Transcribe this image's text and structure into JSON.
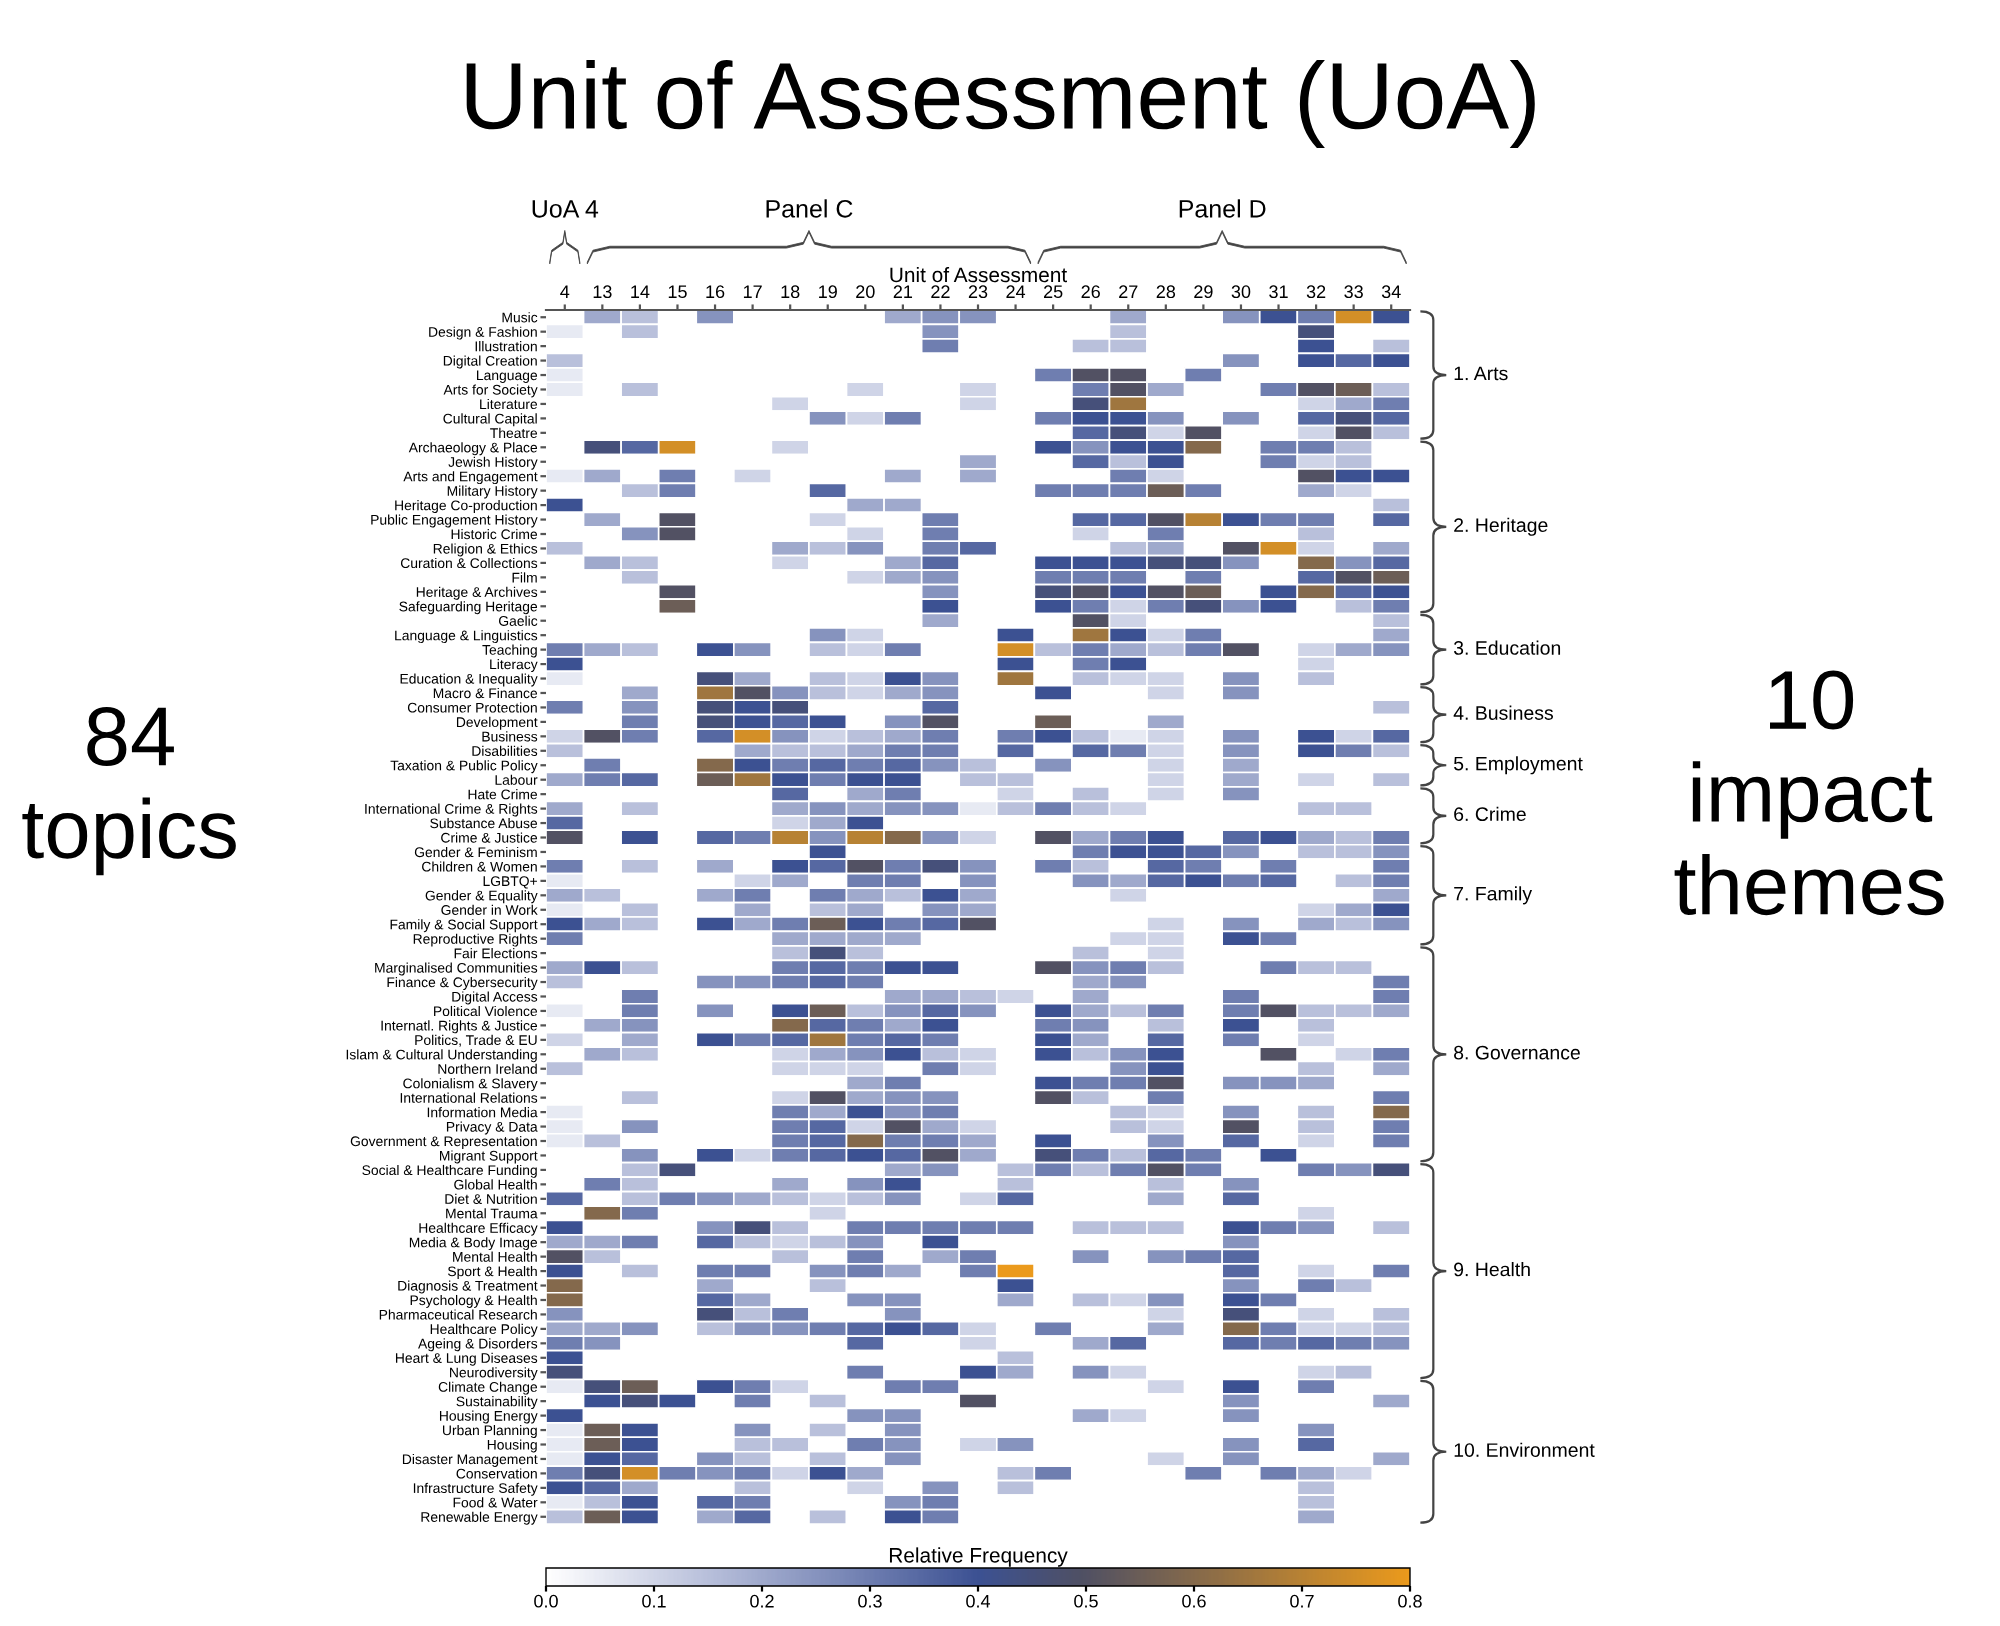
{
  "chart_data": {
    "type": "heatmap",
    "title": "Unit of Assessment (UoA)",
    "xlabel": "Unit of Assessment",
    "clabel": "Relative Frequency",
    "categories": [
      "4",
      "13",
      "14",
      "15",
      "16",
      "17",
      "18",
      "19",
      "20",
      "21",
      "22",
      "23",
      "24",
      "25",
      "26",
      "27",
      "28",
      "29",
      "30",
      "31",
      "32",
      "33",
      "34"
    ],
    "y_categories": [
      "Music",
      "Design & Fashion",
      "Illustration",
      "Digital Creation",
      "Language",
      "Arts for Society",
      "Literature",
      "Cultural Capital",
      "Theatre",
      "Archaeology & Place",
      "Jewish History",
      "Arts and Engagement",
      "Military History",
      "Heritage Co-production",
      "Public Engagement History",
      "Historic Crime",
      "Religion & Ethics",
      "Curation & Collections",
      "Film",
      "Heritage & Archives",
      "Safeguarding Heritage",
      "Gaelic",
      "Language & Linguistics",
      "Teaching",
      "Literacy",
      "Education & Inequality",
      "Macro & Finance",
      "Consumer Protection",
      "Development",
      "Business",
      "Disabilities",
      "Taxation & Public Policy",
      "Labour",
      "Hate Crime",
      "International Crime & Rights",
      "Substance Abuse",
      "Crime & Justice",
      "Gender & Feminism",
      "Children & Women",
      "LGBTQ+",
      "Gender & Equality",
      "Gender in Work",
      "Family & Social Support",
      "Reproductive Rights",
      "Fair Elections",
      "Marginalised Communities",
      "Finance & Cybersecurity",
      "Digital Access",
      "Political Violence",
      "Internatl. Rights & Justice",
      "Politics, Trade & EU",
      "Islam & Cultural Understanding",
      "Northern Ireland",
      "Colonialism & Slavery",
      "International Relations",
      "Information Media",
      "Privacy & Data",
      "Government & Representation",
      "Migrant Support",
      "Social & Healthcare Funding",
      "Global Health",
      "Diet & Nutrition",
      "Mental Trauma",
      "Healthcare Efficacy",
      "Media & Body Image",
      "Mental Health",
      "Sport & Health",
      "Diagnosis & Treatment",
      "Psychology & Health",
      "Pharmaceutical Research",
      "Healthcare Policy",
      "Ageing & Disorders",
      "Heart & Lung Diseases",
      "Neurodiversity",
      "Climate Change",
      "Sustainability",
      "Housing Energy",
      "Urban Planning",
      "Housing",
      "Disaster Management",
      "Conservation",
      "Infrastructure Safety",
      "Food & Water",
      "Renewable Energy"
    ],
    "cells": [
      [
        0,
        0.2,
        0.15,
        0,
        0.25,
        0,
        0,
        0,
        0,
        0.2,
        0.25,
        0.25,
        0,
        0,
        0,
        0.2,
        0,
        0,
        0.25,
        0.4,
        0.3,
        0.75,
        0.4
      ],
      [
        0.05,
        0,
        0.15,
        0,
        0,
        0,
        0,
        0,
        0,
        0,
        0.25,
        0,
        0,
        0,
        0,
        0.15,
        0,
        0,
        0,
        0,
        0.45,
        0,
        0
      ],
      [
        0,
        0,
        0,
        0,
        0,
        0,
        0,
        0,
        0,
        0,
        0.3,
        0,
        0,
        0,
        0.15,
        0.15,
        0,
        0,
        0,
        0,
        0.4,
        0,
        0.15
      ],
      [
        0.15,
        0,
        0,
        0,
        0,
        0,
        0,
        0,
        0,
        0,
        0,
        0,
        0,
        0,
        0,
        0,
        0,
        0,
        0.25,
        0,
        0.4,
        0.35,
        0.4
      ],
      [
        0.05,
        0,
        0,
        0,
        0,
        0,
        0,
        0,
        0,
        0,
        0,
        0,
        0,
        0.3,
        0.5,
        0.5,
        0,
        0.3,
        0,
        0,
        0,
        0,
        0
      ],
      [
        0.05,
        0,
        0.15,
        0,
        0,
        0,
        0,
        0,
        0.1,
        0,
        0,
        0.1,
        0,
        0,
        0.3,
        0.5,
        0.2,
        0,
        0,
        0.3,
        0.5,
        0.55,
        0.15
      ],
      [
        0,
        0,
        0,
        0,
        0,
        0,
        0.1,
        0,
        0,
        0,
        0,
        0.1,
        0,
        0,
        0.45,
        0.65,
        0,
        0,
        0,
        0,
        0.1,
        0.2,
        0.3
      ],
      [
        0,
        0,
        0,
        0,
        0,
        0,
        0,
        0.25,
        0.1,
        0.3,
        0,
        0,
        0,
        0.3,
        0.4,
        0.4,
        0.25,
        0,
        0.25,
        0,
        0.35,
        0.45,
        0.35
      ],
      [
        0,
        0,
        0,
        0,
        0,
        0,
        0,
        0,
        0,
        0,
        0,
        0,
        0,
        0,
        0.35,
        0.45,
        0.1,
        0.5,
        0,
        0,
        0.1,
        0.5,
        0.15
      ],
      [
        0,
        0.45,
        0.35,
        0.75,
        0,
        0,
        0.1,
        0,
        0,
        0,
        0,
        0,
        0,
        0.4,
        0.25,
        0.4,
        0.4,
        0.6,
        0,
        0.3,
        0.3,
        0.15,
        0
      ],
      [
        0,
        0,
        0,
        0,
        0,
        0,
        0,
        0,
        0,
        0,
        0,
        0.2,
        0,
        0,
        0.35,
        0.15,
        0.4,
        0,
        0,
        0.3,
        0.1,
        0.15,
        0
      ],
      [
        0.05,
        0.2,
        0,
        0.3,
        0,
        0.1,
        0,
        0,
        0,
        0.2,
        0,
        0.2,
        0,
        0,
        0,
        0.3,
        0.1,
        0,
        0,
        0,
        0.5,
        0.4,
        0.4
      ],
      [
        0,
        0,
        0.15,
        0.3,
        0,
        0,
        0,
        0.35,
        0,
        0,
        0,
        0,
        0,
        0.3,
        0.3,
        0.3,
        0.55,
        0.3,
        0,
        0,
        0.2,
        0.1,
        0
      ],
      [
        0.4,
        0,
        0,
        0,
        0,
        0,
        0,
        0,
        0.2,
        0.2,
        0,
        0,
        0,
        0,
        0,
        0,
        0,
        0,
        0,
        0,
        0,
        0,
        0.15
      ],
      [
        0,
        0.2,
        0,
        0.5,
        0,
        0,
        0,
        0.1,
        0,
        0,
        0.3,
        0,
        0,
        0,
        0.35,
        0.35,
        0.5,
        0.7,
        0.4,
        0.3,
        0.3,
        0,
        0.35
      ],
      [
        0,
        0,
        0.25,
        0.5,
        0,
        0,
        0,
        0,
        0.1,
        0,
        0.3,
        0,
        0,
        0,
        0.1,
        0,
        0.3,
        0,
        0,
        0,
        0.15,
        0,
        0
      ],
      [
        0.15,
        0,
        0,
        0,
        0,
        0,
        0.2,
        0.15,
        0.25,
        0,
        0.3,
        0.35,
        0,
        0,
        0,
        0.15,
        0.2,
        0,
        0.5,
        0.75,
        0.1,
        0,
        0.2
      ],
      [
        0,
        0.2,
        0.15,
        0,
        0,
        0,
        0.1,
        0,
        0,
        0.2,
        0.35,
        0,
        0,
        0.4,
        0.4,
        0.4,
        0.45,
        0.45,
        0.25,
        0,
        0.6,
        0.25,
        0.35
      ],
      [
        0,
        0,
        0.15,
        0,
        0,
        0,
        0,
        0,
        0.1,
        0.2,
        0.25,
        0,
        0,
        0.3,
        0.3,
        0.3,
        0,
        0.3,
        0,
        0,
        0.35,
        0.5,
        0.55
      ],
      [
        0,
        0,
        0,
        0.5,
        0,
        0,
        0,
        0,
        0,
        0,
        0.25,
        0,
        0,
        0.45,
        0.5,
        0.4,
        0.5,
        0.55,
        0,
        0.4,
        0.6,
        0.35,
        0.4
      ],
      [
        0,
        0,
        0,
        0.55,
        0,
        0,
        0,
        0,
        0,
        0,
        0.4,
        0,
        0,
        0.4,
        0.3,
        0.1,
        0.3,
        0.45,
        0.25,
        0.4,
        0,
        0.15,
        0.3
      ],
      [
        0,
        0,
        0,
        0,
        0,
        0,
        0,
        0,
        0,
        0,
        0.2,
        0,
        0,
        0,
        0.5,
        0.1,
        0,
        0,
        0,
        0,
        0,
        0,
        0.15
      ],
      [
        0,
        0,
        0,
        0,
        0,
        0,
        0,
        0.25,
        0.1,
        0,
        0,
        0,
        0.4,
        0,
        0.65,
        0.4,
        0.1,
        0.3,
        0,
        0,
        0,
        0,
        0.2
      ],
      [
        0.3,
        0.2,
        0.15,
        0,
        0.4,
        0.25,
        0,
        0.15,
        0.1,
        0.3,
        0,
        0,
        0.75,
        0.15,
        0.3,
        0.2,
        0.15,
        0.3,
        0.5,
        0,
        0.1,
        0.2,
        0.25
      ],
      [
        0.4,
        0,
        0,
        0,
        0,
        0,
        0,
        0,
        0,
        0,
        0,
        0,
        0.4,
        0,
        0.3,
        0.4,
        0,
        0,
        0,
        0,
        0.1,
        0,
        0
      ],
      [
        0.05,
        0,
        0,
        0,
        0.45,
        0.2,
        0,
        0.15,
        0.1,
        0.4,
        0.25,
        0,
        0.65,
        0,
        0.15,
        0.1,
        0.1,
        0,
        0.25,
        0,
        0.15,
        0,
        0
      ],
      [
        0,
        0,
        0.2,
        0,
        0.65,
        0.5,
        0.25,
        0.15,
        0.1,
        0.2,
        0.25,
        0,
        0,
        0.4,
        0,
        0,
        0.1,
        0,
        0.25,
        0,
        0,
        0,
        0
      ],
      [
        0.3,
        0,
        0.25,
        0,
        0.45,
        0.4,
        0.45,
        0,
        0,
        0,
        0.35,
        0,
        0,
        0,
        0,
        0,
        0,
        0,
        0,
        0,
        0,
        0,
        0.15
      ],
      [
        0,
        0,
        0.3,
        0,
        0.45,
        0.4,
        0.35,
        0.4,
        0,
        0.25,
        0.5,
        0,
        0,
        0.55,
        0,
        0,
        0.2,
        0,
        0,
        0,
        0,
        0,
        0
      ],
      [
        0.1,
        0.5,
        0.3,
        0,
        0.35,
        0.75,
        0.25,
        0.1,
        0.15,
        0.2,
        0.3,
        0,
        0.3,
        0.4,
        0.15,
        0.05,
        0.1,
        0,
        0.25,
        0,
        0.4,
        0.1,
        0.35
      ],
      [
        0.15,
        0,
        0,
        0,
        0,
        0.2,
        0.15,
        0.15,
        0.2,
        0.3,
        0.3,
        0,
        0.35,
        0,
        0.35,
        0.3,
        0.1,
        0,
        0.25,
        0,
        0.4,
        0.3,
        0.15
      ],
      [
        0,
        0.3,
        0,
        0,
        0.6,
        0.4,
        0.3,
        0.35,
        0.3,
        0.35,
        0.25,
        0.15,
        0,
        0.25,
        0,
        0,
        0.1,
        0,
        0.2,
        0,
        0,
        0,
        0
      ],
      [
        0.2,
        0.3,
        0.35,
        0,
        0.55,
        0.65,
        0.4,
        0.3,
        0.4,
        0.4,
        0,
        0.15,
        0.15,
        0,
        0,
        0,
        0.1,
        0,
        0.2,
        0,
        0.1,
        0,
        0.15
      ],
      [
        0,
        0,
        0,
        0,
        0,
        0,
        0.35,
        0,
        0.2,
        0.3,
        0,
        0,
        0.1,
        0,
        0.15,
        0,
        0.1,
        0,
        0.25,
        0,
        0,
        0,
        0
      ],
      [
        0.2,
        0,
        0.15,
        0,
        0,
        0,
        0.2,
        0.25,
        0.2,
        0.25,
        0.25,
        0.05,
        0.15,
        0.3,
        0.15,
        0.1,
        0,
        0,
        0,
        0,
        0.15,
        0.15,
        0
      ],
      [
        0.35,
        0,
        0,
        0,
        0,
        0,
        0.1,
        0.2,
        0.4,
        0,
        0,
        0,
        0,
        0,
        0,
        0,
        0,
        0,
        0,
        0,
        0,
        0,
        0
      ],
      [
        0.5,
        0,
        0.4,
        0,
        0.35,
        0.3,
        0.7,
        0.25,
        0.7,
        0.6,
        0.25,
        0.1,
        0,
        0.5,
        0.2,
        0.3,
        0.4,
        0,
        0.35,
        0.4,
        0.2,
        0.15,
        0.3
      ],
      [
        0,
        0,
        0,
        0,
        0,
        0,
        0,
        0.4,
        0,
        0,
        0,
        0,
        0,
        0,
        0.3,
        0.4,
        0.4,
        0.35,
        0.25,
        0,
        0.15,
        0.15,
        0.25
      ],
      [
        0.3,
        0,
        0.15,
        0,
        0.2,
        0,
        0.4,
        0.35,
        0.5,
        0.3,
        0.45,
        0.25,
        0,
        0.3,
        0.15,
        0,
        0.35,
        0.3,
        0,
        0.3,
        0,
        0,
        0.3
      ],
      [
        0.05,
        0,
        0,
        0,
        0,
        0.1,
        0.2,
        0,
        0.3,
        0.3,
        0,
        0.25,
        0,
        0,
        0.25,
        0.2,
        0.35,
        0.4,
        0.3,
        0.35,
        0,
        0.15,
        0.3
      ],
      [
        0.2,
        0.15,
        0,
        0,
        0.2,
        0.3,
        0,
        0.3,
        0.2,
        0.15,
        0.4,
        0.2,
        0,
        0,
        0,
        0.1,
        0,
        0,
        0,
        0,
        0,
        0,
        0.2
      ],
      [
        0.05,
        0,
        0.15,
        0,
        0,
        0.2,
        0,
        0.15,
        0.2,
        0,
        0.25,
        0.2,
        0,
        0,
        0,
        0,
        0,
        0,
        0,
        0,
        0.1,
        0.2,
        0.4
      ],
      [
        0.4,
        0.2,
        0.15,
        0,
        0.4,
        0.2,
        0.3,
        0.55,
        0.4,
        0.3,
        0.35,
        0.5,
        0,
        0,
        0,
        0,
        0.1,
        0,
        0.25,
        0,
        0.2,
        0.15,
        0.25
      ],
      [
        0.3,
        0,
        0,
        0,
        0,
        0,
        0.2,
        0.2,
        0.2,
        0.2,
        0,
        0,
        0,
        0,
        0,
        0.1,
        0.1,
        0,
        0.4,
        0.3,
        0,
        0,
        0
      ],
      [
        0,
        0,
        0,
        0,
        0,
        0,
        0.15,
        0.45,
        0.15,
        0,
        0,
        0,
        0,
        0,
        0.15,
        0,
        0.1,
        0,
        0,
        0,
        0,
        0,
        0
      ],
      [
        0.2,
        0.4,
        0.15,
        0,
        0,
        0,
        0.3,
        0.35,
        0.3,
        0.4,
        0.4,
        0,
        0,
        0.5,
        0.25,
        0.3,
        0.15,
        0,
        0,
        0.3,
        0.15,
        0.15,
        0
      ],
      [
        0.15,
        0,
        0,
        0,
        0.25,
        0.25,
        0.3,
        0.35,
        0.3,
        0,
        0,
        0,
        0,
        0,
        0.2,
        0.25,
        0,
        0,
        0,
        0,
        0,
        0,
        0.3
      ],
      [
        0,
        0,
        0.3,
        0,
        0,
        0,
        0,
        0,
        0,
        0.2,
        0.2,
        0.15,
        0.1,
        0,
        0.2,
        0,
        0,
        0,
        0.3,
        0,
        0,
        0,
        0.3
      ],
      [
        0.05,
        0,
        0.3,
        0,
        0.25,
        0,
        0.4,
        0.55,
        0.15,
        0.25,
        0.35,
        0.25,
        0,
        0.4,
        0.2,
        0.15,
        0.3,
        0,
        0.3,
        0.5,
        0.15,
        0.15,
        0.2
      ],
      [
        0,
        0.2,
        0.25,
        0,
        0,
        0,
        0.6,
        0.35,
        0.3,
        0.2,
        0.4,
        0,
        0,
        0.3,
        0.25,
        0,
        0.15,
        0,
        0.4,
        0,
        0.15,
        0,
        0
      ],
      [
        0.1,
        0,
        0.2,
        0,
        0.4,
        0.3,
        0.35,
        0.65,
        0.3,
        0.35,
        0.3,
        0,
        0,
        0.4,
        0.2,
        0,
        0.35,
        0,
        0.3,
        0,
        0.1,
        0,
        0
      ],
      [
        0,
        0.2,
        0.15,
        0,
        0,
        0,
        0.1,
        0.2,
        0.25,
        0.4,
        0.15,
        0.1,
        0,
        0.4,
        0.15,
        0.25,
        0.4,
        0,
        0,
        0.5,
        0,
        0.1,
        0.3
      ],
      [
        0.15,
        0,
        0,
        0,
        0,
        0,
        0.1,
        0.1,
        0.1,
        0,
        0.3,
        0.1,
        0,
        0,
        0,
        0.25,
        0.4,
        0,
        0,
        0,
        0.15,
        0,
        0.2
      ],
      [
        0,
        0,
        0,
        0,
        0,
        0,
        0,
        0,
        0.2,
        0.3,
        0,
        0,
        0,
        0.4,
        0.3,
        0.3,
        0.5,
        0,
        0.25,
        0.25,
        0.2,
        0,
        0
      ],
      [
        0,
        0,
        0.15,
        0,
        0,
        0,
        0.1,
        0.5,
        0.2,
        0.25,
        0.25,
        0,
        0,
        0.5,
        0.15,
        0,
        0.3,
        0,
        0,
        0,
        0,
        0,
        0.3
      ],
      [
        0.05,
        0,
        0,
        0,
        0,
        0,
        0.3,
        0.2,
        0.4,
        0.25,
        0.3,
        0,
        0,
        0,
        0,
        0.15,
        0.1,
        0,
        0.25,
        0,
        0.15,
        0,
        0.6
      ],
      [
        0.05,
        0,
        0.25,
        0,
        0,
        0,
        0.3,
        0.35,
        0.1,
        0.5,
        0.2,
        0.1,
        0,
        0,
        0,
        0.15,
        0.1,
        0,
        0.5,
        0,
        0.15,
        0,
        0.3
      ],
      [
        0.05,
        0.15,
        0,
        0,
        0,
        0,
        0.3,
        0.35,
        0.6,
        0.3,
        0.3,
        0.2,
        0,
        0.4,
        0,
        0,
        0.25,
        0,
        0.35,
        0,
        0.1,
        0,
        0.3
      ],
      [
        0,
        0,
        0.25,
        0,
        0.4,
        0.1,
        0.3,
        0.35,
        0.4,
        0.35,
        0.5,
        0.2,
        0,
        0.45,
        0.3,
        0.15,
        0.35,
        0.3,
        0,
        0.4,
        0,
        0,
        0
      ],
      [
        0,
        0,
        0.15,
        0.45,
        0,
        0,
        0,
        0,
        0,
        0.2,
        0.25,
        0,
        0.15,
        0.3,
        0.15,
        0.3,
        0.5,
        0.3,
        0,
        0,
        0.3,
        0.25,
        0.45
      ],
      [
        0,
        0.3,
        0.15,
        0,
        0,
        0,
        0.2,
        0,
        0.25,
        0.4,
        0,
        0,
        0.15,
        0,
        0,
        0,
        0.15,
        0,
        0.25,
        0,
        0,
        0,
        0
      ],
      [
        0.35,
        0,
        0.15,
        0.3,
        0.25,
        0.2,
        0.15,
        0.1,
        0.15,
        0.25,
        0,
        0.1,
        0.35,
        0,
        0,
        0,
        0.2,
        0,
        0.35,
        0,
        0,
        0,
        0
      ],
      [
        0,
        0.6,
        0.3,
        0,
        0,
        0,
        0,
        0.1,
        0,
        0,
        0,
        0,
        0,
        0,
        0,
        0,
        0,
        0,
        0,
        0,
        0.1,
        0,
        0
      ],
      [
        0.4,
        0,
        0,
        0,
        0.25,
        0.45,
        0.15,
        0,
        0.3,
        0.3,
        0.3,
        0.3,
        0.3,
        0,
        0.15,
        0.15,
        0.15,
        0,
        0.4,
        0.3,
        0.25,
        0,
        0.15
      ],
      [
        0.2,
        0.2,
        0.3,
        0,
        0.35,
        0.15,
        0.1,
        0.15,
        0.25,
        0,
        0.4,
        0,
        0,
        0,
        0,
        0,
        0,
        0,
        0.25,
        0,
        0,
        0,
        0
      ],
      [
        0.5,
        0.15,
        0,
        0,
        0,
        0,
        0.15,
        0,
        0.3,
        0,
        0.2,
        0.3,
        0,
        0,
        0.25,
        0,
        0.25,
        0.3,
        0.35,
        0,
        0,
        0,
        0
      ],
      [
        0.4,
        0,
        0.15,
        0,
        0.3,
        0.3,
        0,
        0.25,
        0.3,
        0.2,
        0,
        0.3,
        0.8,
        0,
        0,
        0,
        0,
        0,
        0.35,
        0,
        0.1,
        0,
        0.3
      ],
      [
        0.6,
        0,
        0,
        0,
        0.2,
        0,
        0,
        0.15,
        0,
        0,
        0,
        0,
        0.4,
        0,
        0,
        0,
        0,
        0,
        0.25,
        0,
        0.3,
        0.15,
        0
      ],
      [
        0.6,
        0,
        0,
        0,
        0.35,
        0.2,
        0,
        0,
        0.25,
        0.25,
        0,
        0,
        0.2,
        0,
        0.15,
        0.1,
        0.25,
        0,
        0.4,
        0.3,
        0,
        0,
        0
      ],
      [
        0.25,
        0,
        0,
        0,
        0.45,
        0.15,
        0.3,
        0,
        0,
        0.25,
        0,
        0,
        0,
        0,
        0,
        0,
        0.1,
        0,
        0.45,
        0,
        0.1,
        0,
        0.15
      ],
      [
        0.2,
        0.2,
        0.25,
        0,
        0.15,
        0.25,
        0.25,
        0.3,
        0.35,
        0.4,
        0.35,
        0.1,
        0,
        0.3,
        0,
        0,
        0.2,
        0,
        0.6,
        0.3,
        0.1,
        0.1,
        0.15
      ],
      [
        0.3,
        0.25,
        0,
        0,
        0,
        0,
        0,
        0,
        0.35,
        0,
        0,
        0.1,
        0,
        0,
        0.2,
        0.35,
        0,
        0,
        0.35,
        0.3,
        0.35,
        0.3,
        0.25
      ],
      [
        0.4,
        0,
        0,
        0,
        0,
        0,
        0,
        0,
        0,
        0,
        0,
        0,
        0.15,
        0,
        0,
        0,
        0,
        0,
        0,
        0,
        0,
        0,
        0
      ],
      [
        0.45,
        0,
        0,
        0,
        0,
        0,
        0,
        0,
        0.3,
        0,
        0,
        0.4,
        0.2,
        0,
        0.25,
        0.1,
        0,
        0,
        0,
        0,
        0.1,
        0.15,
        0
      ],
      [
        0.05,
        0.45,
        0.55,
        0,
        0.4,
        0.3,
        0.1,
        0,
        0,
        0.3,
        0.3,
        0,
        0,
        0,
        0,
        0,
        0.1,
        0,
        0.4,
        0,
        0.3,
        0,
        0
      ],
      [
        0,
        0.4,
        0.45,
        0.4,
        0,
        0.3,
        0,
        0.15,
        0,
        0,
        0,
        0.5,
        0,
        0,
        0,
        0,
        0,
        0,
        0.25,
        0,
        0,
        0,
        0.2
      ],
      [
        0.4,
        0,
        0,
        0,
        0,
        0,
        0,
        0,
        0.25,
        0.25,
        0,
        0,
        0,
        0,
        0.2,
        0.1,
        0,
        0,
        0.25,
        0,
        0,
        0,
        0
      ],
      [
        0.05,
        0.55,
        0.4,
        0,
        0,
        0.25,
        0,
        0.15,
        0,
        0.25,
        0,
        0,
        0,
        0,
        0,
        0,
        0,
        0,
        0,
        0,
        0.25,
        0,
        0
      ],
      [
        0.05,
        0.55,
        0.4,
        0,
        0,
        0.15,
        0.15,
        0,
        0.3,
        0.25,
        0,
        0.1,
        0.25,
        0,
        0,
        0,
        0,
        0,
        0.25,
        0,
        0.35,
        0,
        0
      ],
      [
        0.05,
        0.4,
        0.35,
        0,
        0.25,
        0.15,
        0,
        0.15,
        0,
        0.25,
        0,
        0,
        0,
        0,
        0,
        0,
        0.1,
        0,
        0.25,
        0,
        0,
        0,
        0.2
      ],
      [
        0.3,
        0.45,
        0.75,
        0.3,
        0.25,
        0.3,
        0.1,
        0.4,
        0.2,
        0,
        0,
        0,
        0.15,
        0.3,
        0,
        0,
        0,
        0.3,
        0,
        0.3,
        0.2,
        0.1,
        0
      ],
      [
        0.4,
        0.35,
        0.2,
        0,
        0,
        0.15,
        0,
        0,
        0.1,
        0,
        0.25,
        0,
        0.15,
        0,
        0,
        0,
        0,
        0,
        0,
        0,
        0.15,
        0,
        0
      ],
      [
        0.05,
        0.15,
        0.4,
        0,
        0.35,
        0.3,
        0,
        0,
        0,
        0.25,
        0.3,
        0,
        0,
        0,
        0,
        0,
        0,
        0,
        0,
        0,
        0.15,
        0,
        0
      ],
      [
        0.15,
        0.55,
        0.4,
        0,
        0.2,
        0.35,
        0,
        0.15,
        0,
        0.4,
        0.3,
        0,
        0,
        0,
        0,
        0,
        0,
        0,
        0,
        0,
        0.2,
        0,
        0
      ]
    ],
    "clim": [
      0,
      0.8
    ],
    "cticks": [
      {
        "value": 0,
        "label": "0.0"
      },
      {
        "value": 0.1,
        "label": "0.1"
      },
      {
        "value": 0.2,
        "label": "0.2"
      },
      {
        "value": 0.3,
        "label": "0.3"
      },
      {
        "value": 0.4,
        "label": "0.4"
      },
      {
        "value": 0.5,
        "label": "0.5"
      },
      {
        "value": 0.6,
        "label": "0.6"
      },
      {
        "value": 0.7,
        "label": "0.7"
      },
      {
        "value": 0.8,
        "label": "0.8"
      }
    ],
    "annotations": [
      "84\ntopics",
      "10\nimpact\nthemes",
      "UoA 4",
      "Panel C",
      "Panel D",
      "1. Arts",
      "2. Heritage",
      "3. Education",
      "4. Business",
      "5. Employment",
      "6. Crime",
      "7. Family",
      "8. Governance",
      "9. Health",
      "10. Environment"
    ]
  }
}
